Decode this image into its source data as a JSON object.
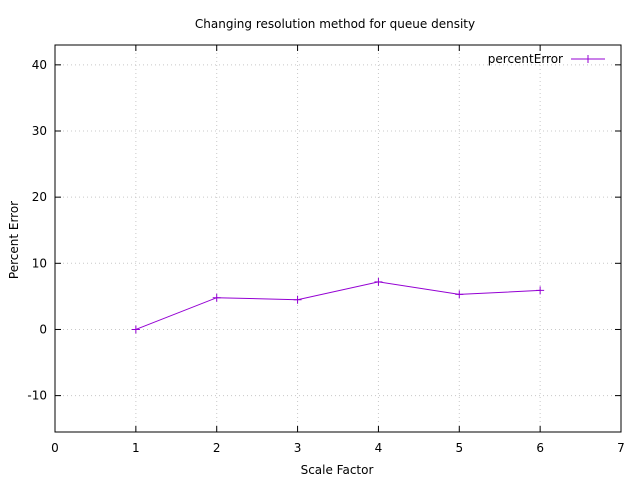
{
  "chart_data": {
    "type": "line",
    "title": "Changing resolution method for queue density",
    "xlabel": "Scale Factor",
    "ylabel": "Percent Error",
    "xlim": [
      0,
      7
    ],
    "ylim": [
      -15.5,
      43
    ],
    "xticks": [
      0,
      1,
      2,
      3,
      4,
      5,
      6,
      7
    ],
    "yticks": [
      -10,
      0,
      10,
      20,
      30,
      40
    ],
    "grid": true,
    "legend_position": "top-right",
    "series": [
      {
        "name": "percentError",
        "color": "#9400d3",
        "marker": "plus",
        "x": [
          1,
          2,
          3,
          4,
          5,
          6
        ],
        "y": [
          0,
          4.8,
          4.5,
          7.2,
          5.3,
          5.9
        ]
      }
    ]
  }
}
